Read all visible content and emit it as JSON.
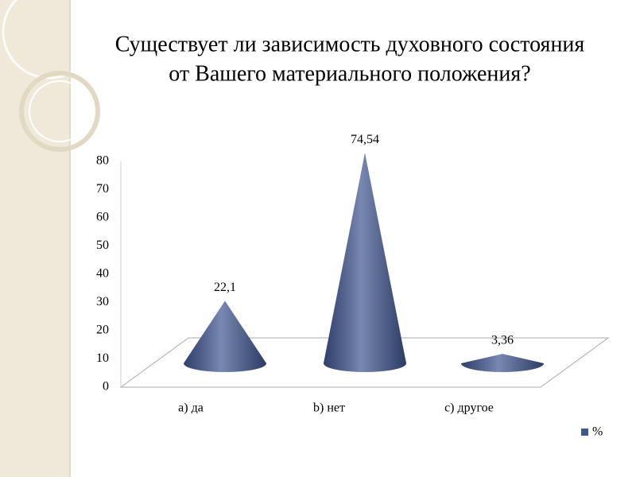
{
  "chart_data": {
    "type": "cone",
    "title": [
      "Существует ли зависимость духовного состояния",
      "от Вашего материального положения?"
    ],
    "categories": [
      "а) да",
      "b) нет",
      "c) другое"
    ],
    "series": [
      {
        "name": "%",
        "color": "#3f5590",
        "values": [
          22.1,
          74.54,
          3.36
        ],
        "value_labels": [
          "22,1",
          "74,54",
          "3,36"
        ]
      }
    ],
    "ylim": [
      0,
      80
    ],
    "yticks": [
      0,
      10,
      20,
      30,
      40,
      50,
      60,
      70,
      80
    ],
    "grid": false,
    "legend": "bottom-right"
  }
}
